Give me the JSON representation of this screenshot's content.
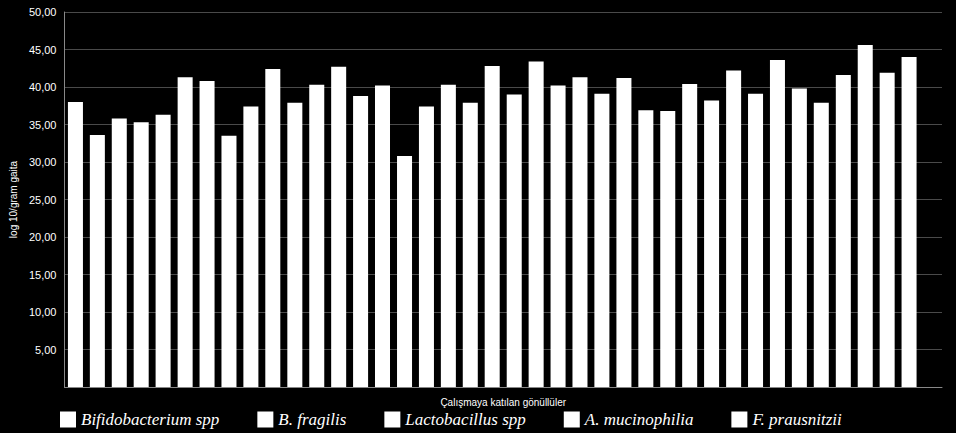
{
  "chart_data": {
    "type": "bar",
    "x_label": "Çalışmaya katılan gönüllüler",
    "y_label": "log 10/gram gaita",
    "categories": [
      null,
      null,
      null,
      null,
      null,
      null,
      null,
      null
    ],
    "series": [
      {
        "name": "Bifidobacterium spp",
        "color": "#ffffff",
        "values": [
          38.0,
          41.3,
          37.9,
          30.8,
          39.0,
          41.2,
          42.2,
          41.6
        ]
      },
      {
        "name": "B. fragilis",
        "color": "#ffffff",
        "values": [
          33.6,
          40.8,
          40.3,
          37.4,
          43.4,
          36.9,
          39.1,
          45.6
        ]
      },
      {
        "name": "Lactobacillus spp",
        "color": "#ffffff",
        "values": [
          35.8,
          33.5,
          42.7,
          40.3,
          40.2,
          36.8,
          43.6,
          41.9
        ]
      },
      {
        "name": "A. mucinophilia",
        "color": "#ffffff",
        "values": [
          35.3,
          37.4,
          38.8,
          37.9,
          41.3,
          40.4,
          39.8,
          44.0
        ]
      },
      {
        "name": "F. prausnitzii",
        "color": "#ffffff",
        "values": [
          36.3,
          42.4,
          40.2,
          42.8,
          39.1,
          38.2,
          37.9,
          null
        ]
      }
    ],
    "ylim": [
      0,
      50
    ],
    "yticks": [
      {
        "value": 5,
        "label": "5,00"
      },
      {
        "value": 10,
        "label": "10,00"
      },
      {
        "value": 15,
        "label": "15,00"
      },
      {
        "value": 20,
        "label": "20,00"
      },
      {
        "value": 25,
        "label": "25,00"
      },
      {
        "value": 30,
        "label": "30,00"
      },
      {
        "value": 35,
        "label": "35,00"
      },
      {
        "value": 40,
        "label": "40,00"
      },
      {
        "value": 45,
        "label": "45,00"
      },
      {
        "value": 50,
        "label": "50,00"
      }
    ],
    "grid": true,
    "legend": "bottom",
    "tick_labels": "y"
  }
}
